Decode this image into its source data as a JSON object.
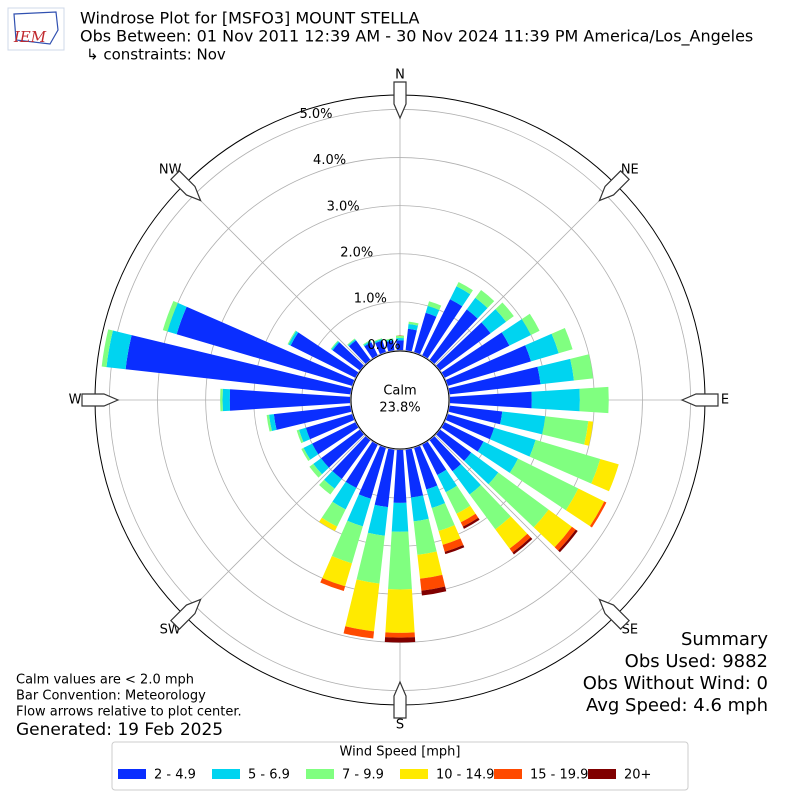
{
  "chart_data": {
    "type": "windrose",
    "logo_text": "IEM",
    "title": "Windrose Plot for [MSFO3] MOUNT STELLA",
    "subtitle": "Obs Between: 01 Nov 2011 12:39 AM - 30 Nov 2024 11:39 PM America/Los_Angeles",
    "constraints": "↳ constraints: Nov",
    "direction_labels": [
      "N",
      "NE",
      "E",
      "SE",
      "S",
      "SW",
      "W",
      "NW"
    ],
    "calm_label": "Calm",
    "calm_value": 23.8,
    "calm_value_label": "23.8%",
    "rlim": [
      0,
      5.3
    ],
    "rticks": [
      {
        "value": 0,
        "label": "0.0%"
      },
      {
        "value": 1,
        "label": "1.0%"
      },
      {
        "value": 2,
        "label": "2.0%"
      },
      {
        "value": 3,
        "label": "3.0%"
      },
      {
        "value": 4,
        "label": "4.0%"
      },
      {
        "value": 5,
        "label": "5.0%"
      }
    ],
    "grid": true,
    "categories": [
      null,
      null,
      null,
      null,
      null,
      null,
      null,
      null,
      null,
      null,
      null,
      null,
      null,
      null,
      null,
      null,
      null,
      null,
      null,
      null,
      null,
      null,
      null,
      null,
      null,
      null,
      null,
      null,
      null,
      null,
      null,
      null,
      null,
      null,
      null,
      null
    ],
    "legend_title": "Wind Speed [mph]",
    "series": [
      {
        "name": "2 - 4.9",
        "color": "#0a2eff",
        "values": [
          0.2,
          0.45,
          0.85,
          1.3,
          1.3,
          1.3,
          1.5,
          1.8,
          1.9,
          1.7,
          1.1,
          1.0,
          0.9,
          0.8,
          0.8,
          0.7,
          0.9,
          1.0,
          1.1,
          1.2,
          1.1,
          1.0,
          1.0,
          1.0,
          1.0,
          1.0,
          1.6,
          2.5,
          4.7,
          3.8,
          1.5,
          0.7,
          0.5,
          0.3,
          0.25,
          0.2
        ]
      },
      {
        "name": "5 - 6.9",
        "color": "#00d4f0",
        "values": [
          0.05,
          0.1,
          0.15,
          0.3,
          0.3,
          0.4,
          0.5,
          0.6,
          0.7,
          1.0,
          0.9,
          0.9,
          0.8,
          0.7,
          0.6,
          0.4,
          0.4,
          0.5,
          0.6,
          0.6,
          0.6,
          0.5,
          0.25,
          0.2,
          0.2,
          0.15,
          0.1,
          0.15,
          0.4,
          0.2,
          0.05,
          0.03,
          0.03,
          0.03,
          0.03,
          0.03
        ]
      },
      {
        "name": "7 - 9.9",
        "color": "#80ff80",
        "values": [
          0.05,
          0.05,
          0.1,
          0.1,
          0.2,
          0.2,
          0.2,
          0.3,
          0.4,
          0.6,
          0.9,
          1.4,
          1.4,
          1.3,
          0.9,
          0.5,
          0.5,
          0.7,
          1.2,
          1.0,
          0.8,
          0.4,
          0.15,
          0.1,
          0.05,
          0.05,
          0.05,
          0.05,
          0.1,
          0.1,
          0.02,
          0.02,
          0.02,
          0.02,
          0.02,
          0.02
        ]
      },
      {
        "name": "10 - 14.9",
        "color": "#ffea00",
        "values": [
          0,
          0,
          0,
          0,
          0,
          0,
          0,
          0,
          0,
          0,
          0.1,
          0.4,
          0.6,
          0.6,
          0.5,
          0.2,
          0.3,
          0.5,
          0.9,
          1.0,
          0.5,
          0.1,
          0,
          0,
          0,
          0,
          0,
          0,
          0,
          0,
          0,
          0,
          0,
          0,
          0,
          0
        ]
      },
      {
        "name": "15 - 19.9",
        "color": "#ff4a00",
        "values": [
          0,
          0,
          0,
          0,
          0,
          0,
          0,
          0,
          0,
          0,
          0,
          0,
          0.05,
          0.1,
          0.1,
          0.1,
          0.15,
          0.25,
          0.1,
          0.15,
          0.1,
          0,
          0,
          0,
          0,
          0,
          0,
          0,
          0,
          0,
          0,
          0,
          0,
          0,
          0,
          0
        ]
      },
      {
        "name": "20+",
        "color": "#800000",
        "values": [
          0,
          0,
          0,
          0,
          0,
          0,
          0,
          0,
          0,
          0,
          0,
          0,
          0,
          0.05,
          0.05,
          0.05,
          0.05,
          0.1,
          0.1,
          0,
          0,
          0,
          0,
          0,
          0,
          0,
          0,
          0,
          0,
          0,
          0,
          0,
          0,
          0,
          0,
          0
        ]
      }
    ],
    "summary": [
      "Summary",
      "Obs Used: 9882",
      "Obs Without Wind: 0",
      "Avg Speed: 4.6 mph"
    ],
    "notes": [
      "Calm values are < 2.0 mph",
      "Bar Convention: Meteorology",
      "Flow arrows relative to plot center."
    ],
    "generated": "Generated: 19 Feb 2025"
  }
}
